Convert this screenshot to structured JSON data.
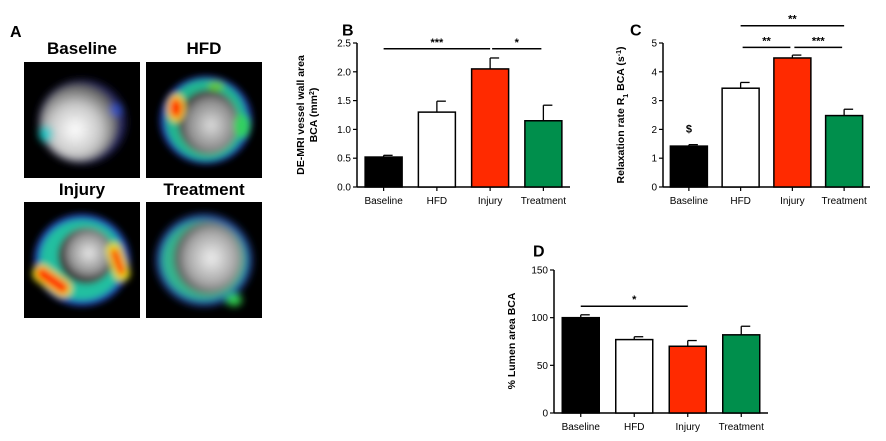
{
  "panel_a": {
    "letter": "A",
    "images": [
      {
        "title": "Baseline"
      },
      {
        "title": "HFD"
      },
      {
        "title": "Injury"
      },
      {
        "title": "Treatment"
      }
    ]
  },
  "colors": {
    "Baseline": "#000000",
    "HFD": "#ffffff",
    "Injury": "#ff2a00",
    "Treatment": "#008f4c"
  },
  "chart_data": [
    {
      "letter": "B",
      "type": "bar",
      "categories": [
        "Baseline",
        "HFD",
        "Injury",
        "Treatment"
      ],
      "values": [
        0.52,
        1.3,
        2.05,
        1.15
      ],
      "errors": [
        0.03,
        0.19,
        0.19,
        0.27
      ],
      "ylabel_line1": "DE-MRI vessel wall area",
      "ylabel_line2_pre": "BCA (mm",
      "ylabel_sup": "2",
      "ylabel_line2_post": ")",
      "ylim": [
        0,
        2.5
      ],
      "yticks": [
        "0.0",
        "0.5",
        "1.0",
        "1.5",
        "2.0",
        "2.5"
      ],
      "yticks_values": [
        0,
        0.5,
        1.0,
        1.5,
        2.0,
        2.5
      ],
      "annotations": [
        {
          "from": 0,
          "to": 2,
          "level": 2.4,
          "text": "***"
        },
        {
          "from": 2,
          "to": 3,
          "level": 2.4,
          "text": "*"
        }
      ]
    },
    {
      "letter": "C",
      "type": "bar",
      "categories": [
        "Baseline",
        "HFD",
        "Injury",
        "Treatment"
      ],
      "values": [
        1.42,
        3.43,
        4.48,
        2.48
      ],
      "errors": [
        0.05,
        0.2,
        0.1,
        0.22
      ],
      "ylabel_pre": "Relaxation rate R",
      "ylabel_sub": "1",
      "ylabel_mid": " BCA (s",
      "ylabel_sup": "-1",
      "ylabel_post": ")",
      "ylim": [
        0,
        5
      ],
      "yticks": [
        "0",
        "1",
        "2",
        "3",
        "4",
        "5"
      ],
      "yticks_values": [
        0,
        1,
        2,
        3,
        4,
        5
      ],
      "marker_text": "$",
      "annotations": [
        {
          "from": 1,
          "to": 3,
          "level": 5.6,
          "text": "**"
        },
        {
          "from": 1,
          "to": 2,
          "level": 4.85,
          "text": "**"
        },
        {
          "from": 2,
          "to": 3,
          "level": 4.85,
          "text": "***"
        }
      ]
    },
    {
      "letter": "D",
      "type": "bar",
      "categories": [
        "Baseline",
        "HFD",
        "Injury",
        "Treatment"
      ],
      "values": [
        100,
        77,
        70,
        82
      ],
      "errors": [
        3,
        3,
        6,
        9
      ],
      "ylabel": "% Lumen area BCA",
      "ylim": [
        0,
        150
      ],
      "yticks": [
        "0",
        "50",
        "100",
        "150"
      ],
      "yticks_values": [
        0,
        50,
        100,
        150
      ],
      "annotations": [
        {
          "from": 0,
          "to": 2,
          "level": 112,
          "text": "*"
        }
      ]
    }
  ]
}
